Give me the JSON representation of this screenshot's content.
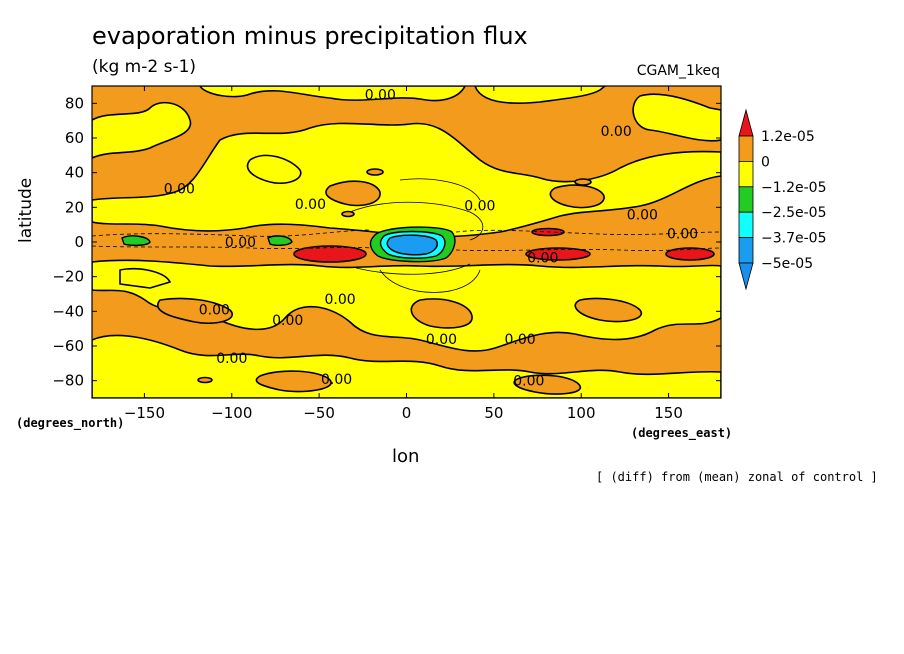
{
  "chart_data": {
    "type": "heatmap",
    "title": "evaporation minus precipitation flux",
    "units": "(kg m-2 s-1)",
    "experiment": "CGAM_1keq",
    "xlabel": "lon",
    "ylabel": "latitude",
    "x_units": "(degrees_east)",
    "y_units": "(degrees_north)",
    "xlim": [
      -180,
      180
    ],
    "ylim": [
      -90,
      90
    ],
    "x_ticks": [
      -150,
      -100,
      -50,
      0,
      50,
      100,
      150
    ],
    "y_ticks": [
      80,
      60,
      40,
      20,
      0,
      -20,
      -40,
      -60,
      -80
    ],
    "x_tick_labels": [
      "−150",
      "−100",
      "−50",
      "0",
      "50",
      "100",
      "150"
    ],
    "y_tick_labels": [
      "80",
      "60",
      "40",
      "20",
      "0",
      "−20",
      "−40",
      "−60",
      "−80"
    ],
    "colorbar": {
      "labels": [
        "1.2e-05",
        "0",
        "−1.2e-05",
        "−2.5e-05",
        "−3.7e-05",
        "−5e-05"
      ],
      "levels": [
        1.2e-05,
        0,
        -1.2e-05,
        -2.5e-05,
        -3.7e-05,
        -5e-05
      ],
      "colors": [
        "#e8151b",
        "#f39b1d",
        "#ffff00",
        "#22cc22",
        "#11ffff",
        "#1a9cf0",
        "#1a90ee"
      ]
    },
    "contour_labels": [
      {
        "text": "0.00",
        "lon": -15,
        "lat": 85
      },
      {
        "text": "0.00",
        "lon": 120,
        "lat": 64
      },
      {
        "text": "0.00",
        "lon": -130,
        "lat": 31
      },
      {
        "text": "0.00",
        "lon": -55,
        "lat": 22
      },
      {
        "text": "0.00",
        "lon": 42,
        "lat": 21
      },
      {
        "text": "0.00",
        "lon": 135,
        "lat": 16
      },
      {
        "text": "0.00",
        "lon": 158,
        "lat": 5
      },
      {
        "text": "0.00",
        "lon": -95,
        "lat": 0
      },
      {
        "text": "0.00",
        "lon": 78,
        "lat": -9
      },
      {
        "text": "0.00",
        "lon": -38,
        "lat": -33
      },
      {
        "text": "0.00",
        "lon": -110,
        "lat": -39
      },
      {
        "text": "0.00",
        "lon": -68,
        "lat": -45
      },
      {
        "text": "0.00",
        "lon": 20,
        "lat": -56
      },
      {
        "text": "0.00",
        "lon": 65,
        "lat": -56
      },
      {
        "text": "0.00",
        "lon": -100,
        "lat": -67
      },
      {
        "text": "0.00",
        "lon": -40,
        "lat": -79
      },
      {
        "text": "0.00",
        "lon": 70,
        "lat": -80
      }
    ],
    "features": {
      "positive_max_bands_lat": -5,
      "positive_max_bands_lon": [
        [
          -68,
          -28
        ],
        [
          60,
          100
        ],
        [
          140,
          175
        ]
      ],
      "negative_min_region": {
        "lon": [
          -22,
          22
        ],
        "lat": [
          -8,
          8
        ]
      },
      "negative_minor_region": {
        "lon": [
          -160,
          -145
        ],
        "lat": [
          -2,
          4
        ]
      },
      "grid": false
    }
  },
  "footnote": "[ (diff) from (mean) zonal of control ]"
}
